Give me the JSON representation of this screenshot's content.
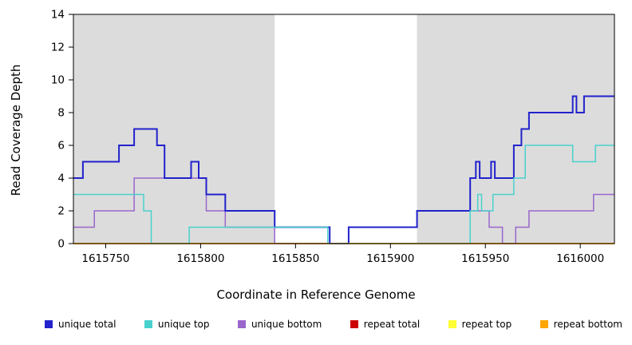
{
  "chart_data": {
    "type": "line",
    "subtype": "step",
    "title": "",
    "xlabel": "Coordinate in Reference Genome",
    "ylabel": "Read Coverage Depth",
    "xlim": [
      1615733,
      1616018
    ],
    "ylim": [
      0,
      14
    ],
    "xticks": [
      1615750,
      1615800,
      1615850,
      1615900,
      1615950,
      1616000
    ],
    "yticks": [
      0,
      2,
      4,
      6,
      8,
      10,
      12,
      14
    ],
    "grid": false,
    "legend_position": "bottom",
    "shaded_color": "#DCDCDC",
    "shaded_regions": [
      {
        "x0": 1615733,
        "x1": 1615839
      },
      {
        "x0": 1615914,
        "x1": 1616018
      }
    ],
    "series": [
      {
        "name": "unique total",
        "color": "#2222CC",
        "width": 2,
        "points": [
          [
            1615733,
            4
          ],
          [
            1615738,
            5
          ],
          [
            1615757,
            6
          ],
          [
            1615765,
            7
          ],
          [
            1615777,
            6
          ],
          [
            1615781,
            4
          ],
          [
            1615795,
            5
          ],
          [
            1615799,
            4
          ],
          [
            1615803,
            3
          ],
          [
            1615813,
            2
          ],
          [
            1615839,
            1
          ],
          [
            1615868,
            0
          ],
          [
            1615878,
            1
          ],
          [
            1615914,
            2
          ],
          [
            1615942,
            4
          ],
          [
            1615945,
            5
          ],
          [
            1615947,
            4
          ],
          [
            1615953,
            5
          ],
          [
            1615955,
            4
          ],
          [
            1615965,
            6
          ],
          [
            1615969,
            7
          ],
          [
            1615973,
            8
          ],
          [
            1615996,
            9
          ],
          [
            1615998,
            8
          ],
          [
            1616002,
            9
          ]
        ]
      },
      {
        "name": "unique top",
        "color": "#48D1CC",
        "width": 1.5,
        "points": [
          [
            1615733,
            3
          ],
          [
            1615770,
            2
          ],
          [
            1615774,
            0
          ],
          [
            1615794,
            1
          ],
          [
            1615867,
            0
          ],
          [
            1615942,
            2
          ],
          [
            1615946,
            3
          ],
          [
            1615948,
            2
          ],
          [
            1615954,
            3
          ],
          [
            1615965,
            4
          ],
          [
            1615971,
            6
          ],
          [
            1615996,
            5
          ],
          [
            1616008,
            6
          ]
        ]
      },
      {
        "name": "unique bottom",
        "color": "#9966CC",
        "width": 1.5,
        "points": [
          [
            1615733,
            1
          ],
          [
            1615744,
            2
          ],
          [
            1615765,
            4
          ],
          [
            1615803,
            2
          ],
          [
            1615813,
            1
          ],
          [
            1615839,
            0
          ],
          [
            1615878,
            1
          ],
          [
            1615914,
            2
          ],
          [
            1615952,
            1
          ],
          [
            1615959,
            0
          ],
          [
            1615966,
            1
          ],
          [
            1615973,
            2
          ],
          [
            1616007,
            3
          ]
        ]
      },
      {
        "name": "repeat total",
        "color": "#CC0000",
        "width": 1.5,
        "points": [
          [
            1615733,
            0
          ]
        ]
      },
      {
        "name": "repeat top",
        "color": "#FFFF33",
        "width": 1.5,
        "points": [
          [
            1615733,
            0
          ]
        ]
      },
      {
        "name": "repeat bottom",
        "color": "#FFA500",
        "width": 1.5,
        "points": [
          [
            1615733,
            0
          ]
        ]
      }
    ]
  }
}
